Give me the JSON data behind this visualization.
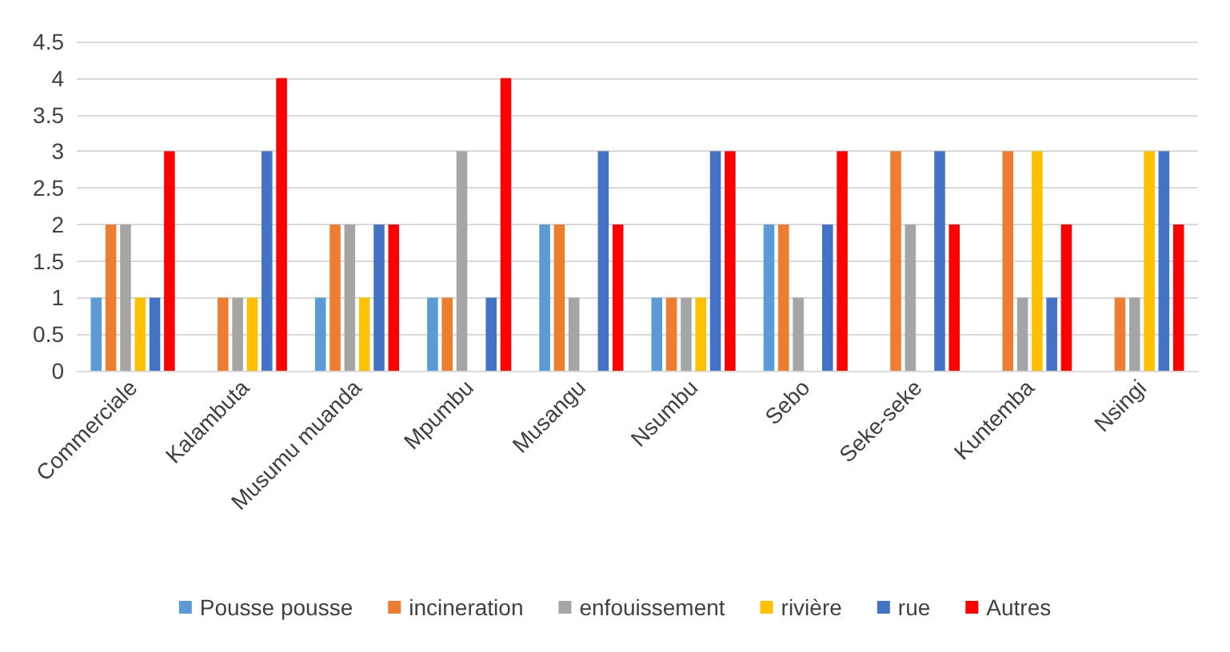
{
  "chart_data": {
    "type": "bar",
    "categories": [
      "Commerciale",
      "Kalambuta",
      "Musumu muanda",
      "Mpumbu",
      "Musangu",
      "Nsumbu",
      "Sebo",
      "Seke-seke",
      "Kuntemba",
      "Nsingi"
    ],
    "series": [
      {
        "name": "Pousse pousse",
        "color": "#5b9bd5",
        "values": [
          1,
          0,
          1,
          1,
          2,
          1,
          2,
          0,
          0,
          0
        ]
      },
      {
        "name": "incineration",
        "color": "#ed7d31",
        "values": [
          2,
          1,
          2,
          1,
          2,
          1,
          2,
          3,
          3,
          1
        ]
      },
      {
        "name": "enfouissement",
        "color": "#a5a5a5",
        "values": [
          2,
          1,
          2,
          3,
          1,
          1,
          1,
          2,
          1,
          1
        ]
      },
      {
        "name": "rivière",
        "color": "#ffc000",
        "values": [
          1,
          1,
          1,
          0,
          0,
          1,
          0,
          0,
          3,
          3
        ]
      },
      {
        "name": "rue",
        "color": "#4472c4",
        "values": [
          1,
          3,
          2,
          1,
          3,
          3,
          2,
          3,
          1,
          3
        ]
      },
      {
        "name": "Autres",
        "color": "#ff0000",
        "values": [
          3,
          4,
          2,
          4,
          2,
          3,
          3,
          2,
          2,
          2
        ]
      }
    ],
    "ylim": [
      0,
      4.5
    ],
    "yticks": [
      0,
      0.5,
      1,
      1.5,
      2,
      2.5,
      3,
      3.5,
      4,
      4.5
    ],
    "grid": "y",
    "legend": "bottom"
  }
}
